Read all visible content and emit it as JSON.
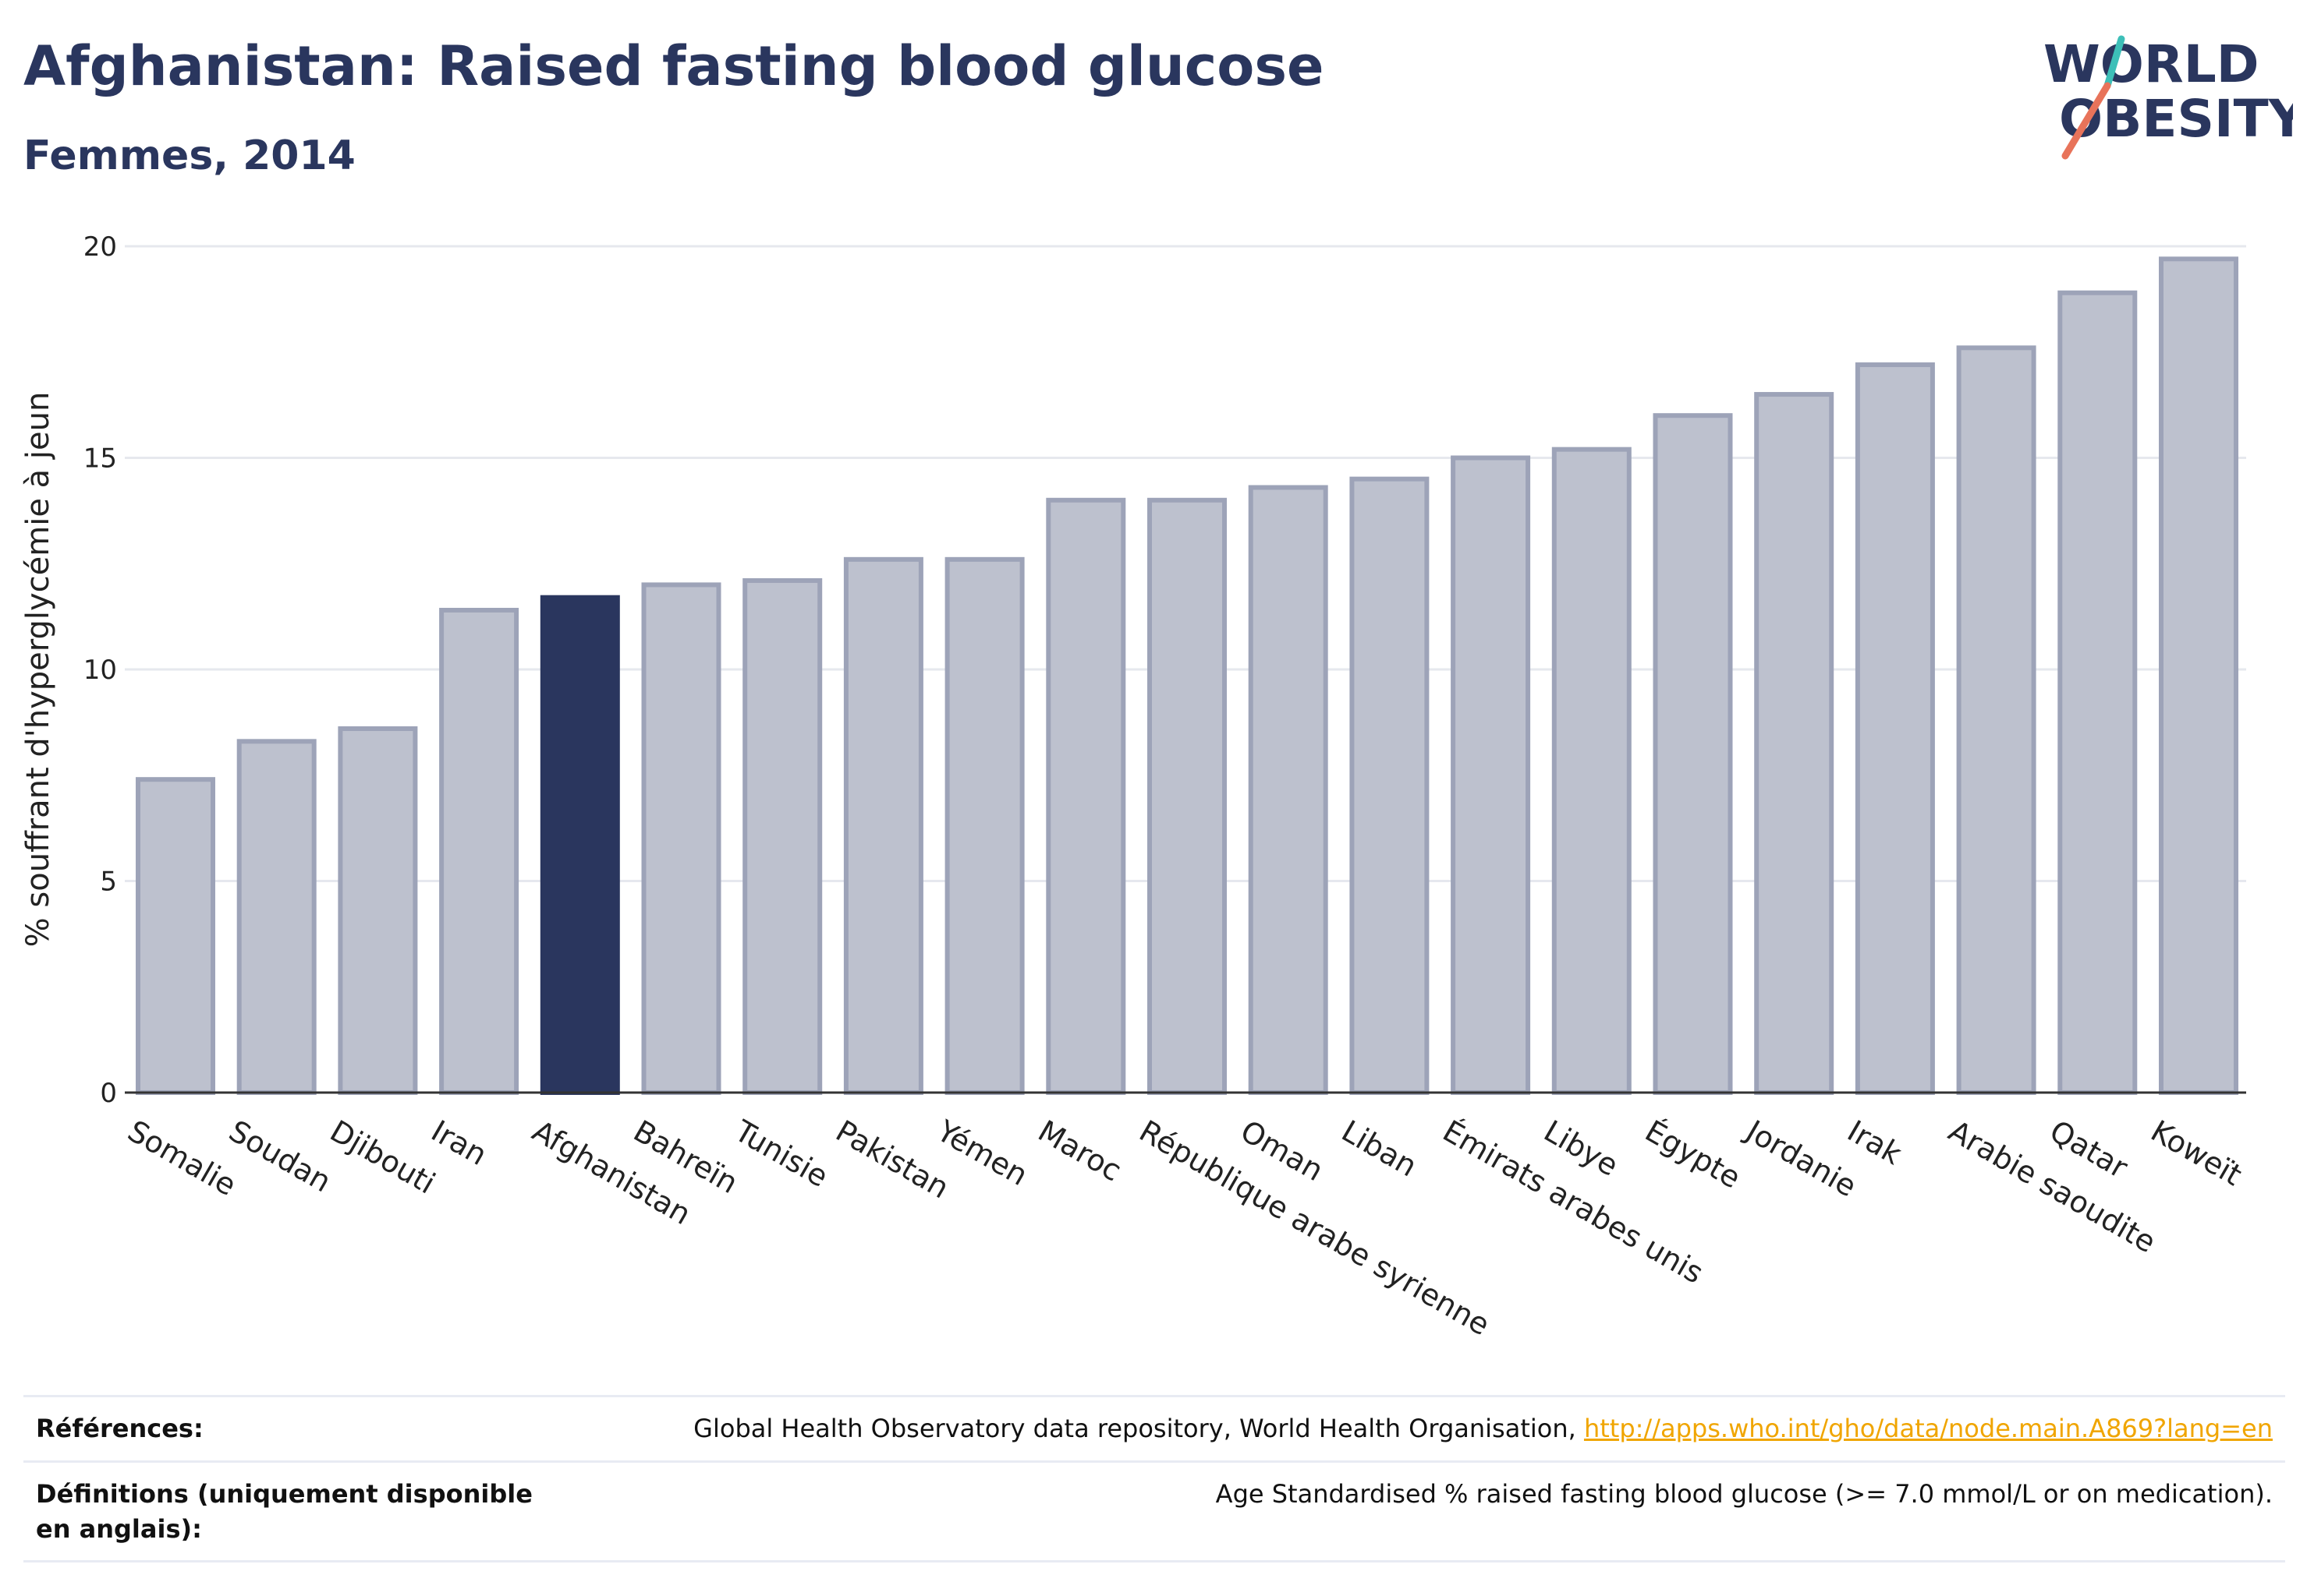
{
  "header": {
    "title": "Afghanistan: Raised fasting blood glucose",
    "subtitle": "Femmes, 2014"
  },
  "logo": {
    "line1": "WORLD",
    "line2": "OBESITY",
    "colors": {
      "text": "#2a365e",
      "slash_top": "#3dbfb8",
      "slash_bottom": "#e8735a"
    }
  },
  "chart_data": {
    "type": "bar",
    "title": "Afghanistan: Raised fasting blood glucose",
    "subtitle": "Femmes, 2014",
    "xlabel": "",
    "ylabel": "% souffrant d'hyperglycémie à jeun",
    "ylim": [
      0,
      20
    ],
    "yticks": [
      0,
      5,
      10,
      15,
      20
    ],
    "grid": true,
    "highlight": "Afghanistan",
    "colors": {
      "bar": "#bdc1ce",
      "bar_edge": "#9da3b8",
      "highlight": "#2a365e"
    },
    "categories": [
      "Somalie",
      "Soudan",
      "Djibouti",
      "Iran",
      "Afghanistan",
      "Bahreïn",
      "Tunisie",
      "Pakistan",
      "Yémen",
      "Maroc",
      "République arabe syrienne",
      "Oman",
      "Liban",
      "Émirats arabes unis",
      "Libye",
      "Égypte",
      "Jordanie",
      "Irak",
      "Arabie saoudite",
      "Qatar",
      "Koweït"
    ],
    "values": [
      7.4,
      8.3,
      8.6,
      11.4,
      11.7,
      12.0,
      12.1,
      12.6,
      12.6,
      14.0,
      14.0,
      14.3,
      14.5,
      15.0,
      15.2,
      16.0,
      16.5,
      17.2,
      17.6,
      18.9,
      19.7
    ]
  },
  "footer": {
    "references_label": "Références:",
    "references_text": "Global Health Observatory data repository, World Health Organisation, ",
    "references_link": "http://apps.who.int/gho/data/node.main.A869?lang=en",
    "definitions_label": "Définitions (uniquement disponible en anglais):",
    "definitions_text": "Age Standardised % raised fasting blood glucose (>= 7.0 mmol/L or on medication)."
  }
}
